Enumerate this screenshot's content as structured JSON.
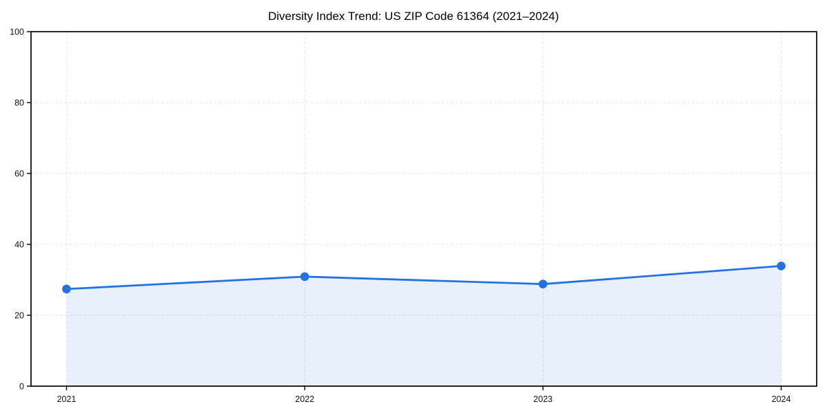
{
  "chart_data": {
    "type": "area",
    "title": "Diversity Index Trend: US ZIP Code 61364 (2021–2024)",
    "categories": [
      "2021",
      "2022",
      "2023",
      "2024"
    ],
    "series": [
      {
        "name": "Diversity Index",
        "values": [
          27.4,
          30.9,
          28.8,
          33.9
        ]
      }
    ],
    "xlabel": "",
    "ylabel": "",
    "ylim": [
      0,
      100
    ],
    "yticks": [
      0,
      20,
      40,
      60,
      80,
      100
    ],
    "grid": "dashed, horizontal and vertical at ticks",
    "legend": "none",
    "colors": {
      "line": "#2272e4",
      "marker": "#2272e4",
      "fill": "#e7effc",
      "grid": "#e6e6e6",
      "frame": "#000000",
      "tick_text": "#111111",
      "background": "#ffffff"
    }
  }
}
